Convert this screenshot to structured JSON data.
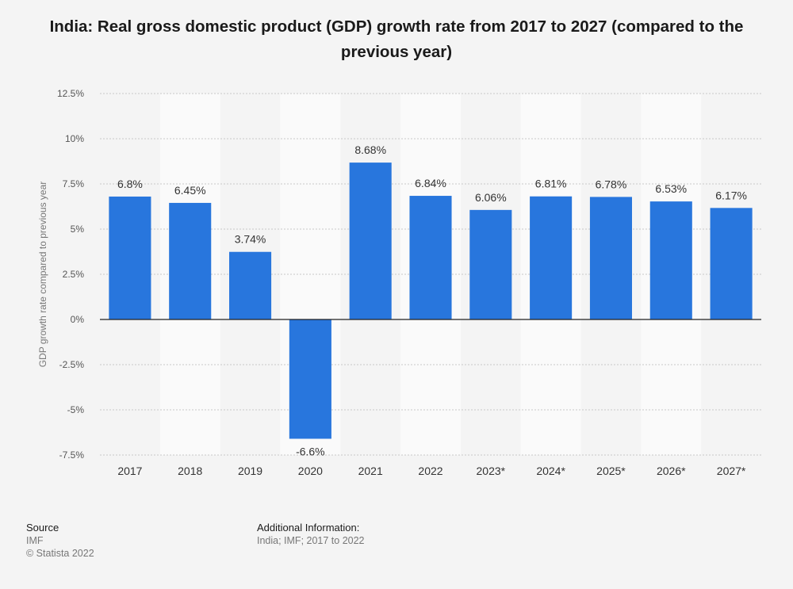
{
  "title": "India: Real gross domestic product (GDP) growth rate from 2017 to 2027 (compared to the previous year)",
  "colors": {
    "bar": "#2876dd",
    "band": "#fafafa",
    "grid": "#c8c8c8",
    "zero_line": "#222222",
    "tick_text": "#555555",
    "label_text": "#333333"
  },
  "chart_data": {
    "type": "bar",
    "title": "India: Real gross domestic product (GDP) growth rate from 2017 to 2027 (compared to the previous year)",
    "categories": [
      "2017",
      "2018",
      "2019",
      "2020",
      "2021",
      "2022",
      "2023*",
      "2024*",
      "2025*",
      "2026*",
      "2027*"
    ],
    "values": [
      6.8,
      6.45,
      3.74,
      -6.6,
      8.68,
      6.84,
      6.06,
      6.81,
      6.78,
      6.53,
      6.17
    ],
    "value_labels": [
      "6.8%",
      "6.45%",
      "3.74%",
      "-6.6%",
      "8.68%",
      "6.84%",
      "6.06%",
      "6.81%",
      "6.78%",
      "6.53%",
      "6.17%"
    ],
    "xlabel": "",
    "ylabel": "GDP growth rate compared to previous year",
    "ylim": [
      -7.5,
      12.5
    ],
    "yticks": [
      12.5,
      10,
      7.5,
      5,
      2.5,
      0,
      -2.5,
      -5,
      -7.5
    ],
    "ytick_labels": [
      "12.5%",
      "10%",
      "7.5%",
      "5%",
      "2.5%",
      "0%",
      "-2.5%",
      "-5%",
      "-7.5%"
    ],
    "grid": true
  },
  "footer": {
    "source_heading": "Source",
    "source_lines": [
      "IMF",
      "© Statista 2022"
    ],
    "additional_heading": "Additional Information:",
    "additional_text": "India; IMF; 2017 to 2022"
  }
}
